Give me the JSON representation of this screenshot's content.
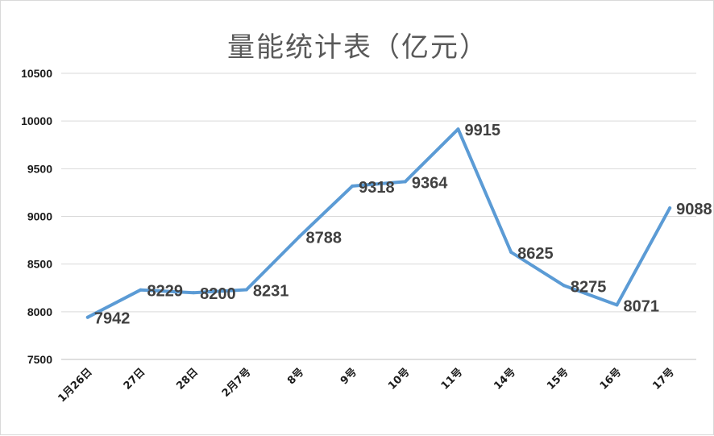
{
  "chart_data": {
    "type": "line",
    "title": "量能统计表（亿元）",
    "xlabel": "",
    "ylabel": "",
    "categories": [
      "1月26日",
      "27日",
      "28日",
      "2月7号",
      "8号",
      "9号",
      "10号",
      "11号",
      "14号",
      "15号",
      "16号",
      "17号"
    ],
    "series": [
      {
        "values": [
          7942,
          8229,
          8200,
          8231,
          8788,
          9318,
          9364,
          9915,
          8625,
          8275,
          8071,
          9088
        ]
      }
    ],
    "ylim": [
      7500,
      10500
    ],
    "yticks": [
      7500,
      8000,
      8500,
      9000,
      9500,
      10000,
      10500
    ],
    "grid": true,
    "legend": "none",
    "line_color": "#5b9bd5"
  }
}
